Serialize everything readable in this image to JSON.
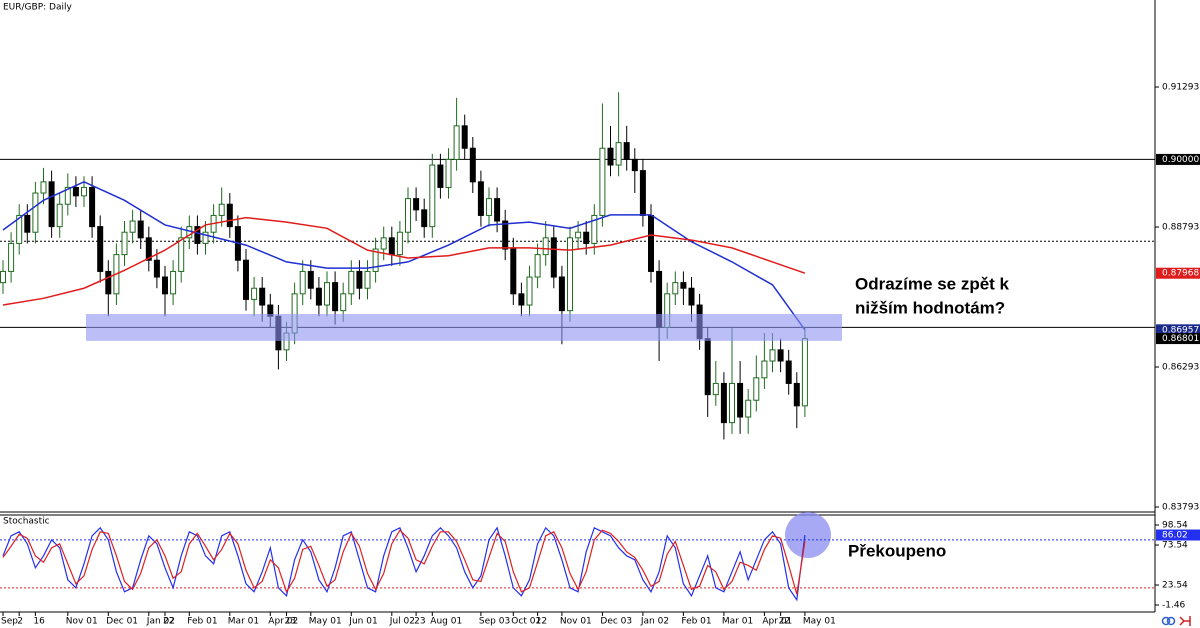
{
  "chart_data": [
    {
      "type": "candlestick",
      "title": "EUR/GBP: Daily",
      "open": [
        0.878,
        0.88,
        0.885,
        0.89,
        0.887,
        0.894,
        0.896,
        0.888,
        0.892,
        0.895,
        0.8935,
        0.895,
        0.888,
        0.88,
        0.876,
        0.883,
        0.887,
        0.889,
        0.886,
        0.882,
        0.879,
        0.876,
        0.88,
        0.886,
        0.888,
        0.885,
        0.887,
        0.89,
        0.892,
        0.888,
        0.882,
        0.875,
        0.877,
        0.874,
        0.872,
        0.866,
        0.869,
        0.876,
        0.88,
        0.877,
        0.874,
        0.878,
        0.873,
        0.876,
        0.88,
        0.877,
        0.88,
        0.884,
        0.886,
        0.883,
        0.887,
        0.893,
        0.891,
        0.888,
        0.899,
        0.895,
        0.9,
        0.906,
        0.902,
        0.896,
        0.89,
        0.893,
        0.889,
        0.884,
        0.876,
        0.874,
        0.879,
        0.883,
        0.886,
        0.879,
        0.873,
        0.886,
        0.887,
        0.885,
        0.89,
        0.902,
        0.899,
        0.903,
        0.9,
        0.898,
        0.89,
        0.88,
        0.87,
        0.876,
        0.878,
        0.877,
        0.874,
        0.868,
        0.858,
        0.86,
        0.853,
        0.86,
        0.854,
        0.857,
        0.861,
        0.864,
        0.866,
        0.864,
        0.86,
        0.856
      ],
      "high": [
        0.882,
        0.887,
        0.892,
        0.892,
        0.896,
        0.8985,
        0.898,
        0.894,
        0.8975,
        0.897,
        0.897,
        0.897,
        0.89,
        0.882,
        0.885,
        0.889,
        0.891,
        0.891,
        0.888,
        0.884,
        0.881,
        0.882,
        0.888,
        0.89,
        0.89,
        0.889,
        0.892,
        0.895,
        0.894,
        0.89,
        0.884,
        0.879,
        0.879,
        0.876,
        0.874,
        0.871,
        0.878,
        0.882,
        0.882,
        0.879,
        0.88,
        0.88,
        0.878,
        0.882,
        0.882,
        0.882,
        0.886,
        0.888,
        0.888,
        0.889,
        0.895,
        0.895,
        0.893,
        0.901,
        0.901,
        0.902,
        0.911,
        0.908,
        0.904,
        0.898,
        0.895,
        0.895,
        0.891,
        0.886,
        0.878,
        0.881,
        0.885,
        0.889,
        0.888,
        0.881,
        0.888,
        0.889,
        0.889,
        0.892,
        0.91,
        0.906,
        0.912,
        0.906,
        0.902,
        0.9,
        0.892,
        0.882,
        0.878,
        0.88,
        0.88,
        0.879,
        0.876,
        0.87,
        0.864,
        0.862,
        0.87,
        0.864,
        0.859,
        0.865,
        0.869,
        0.869,
        0.868,
        0.866,
        0.862,
        0.87
      ],
      "low": [
        0.876,
        0.878,
        0.883,
        0.885,
        0.885,
        0.892,
        0.886,
        0.886,
        0.89,
        0.8915,
        0.8915,
        0.886,
        0.878,
        0.872,
        0.874,
        0.881,
        0.885,
        0.884,
        0.88,
        0.877,
        0.872,
        0.874,
        0.878,
        0.884,
        0.883,
        0.883,
        0.885,
        0.888,
        0.886,
        0.88,
        0.873,
        0.872,
        0.871,
        0.87,
        0.8625,
        0.864,
        0.867,
        0.874,
        0.875,
        0.872,
        0.872,
        0.8705,
        0.871,
        0.874,
        0.875,
        0.875,
        0.878,
        0.882,
        0.881,
        0.881,
        0.885,
        0.889,
        0.886,
        0.886,
        0.893,
        0.893,
        0.898,
        0.9,
        0.894,
        0.888,
        0.888,
        0.887,
        0.882,
        0.874,
        0.872,
        0.872,
        0.877,
        0.881,
        0.877,
        0.867,
        0.871,
        0.884,
        0.883,
        0.883,
        0.888,
        0.897,
        0.897,
        0.898,
        0.894,
        0.888,
        0.878,
        0.864,
        0.868,
        0.874,
        0.874,
        0.871,
        0.866,
        0.854,
        0.856,
        0.85,
        0.851,
        0.851,
        0.851,
        0.855,
        0.859,
        0.862,
        0.862,
        0.858,
        0.852,
        0.854
      ],
      "close": [
        0.88,
        0.885,
        0.89,
        0.887,
        0.894,
        0.896,
        0.888,
        0.892,
        0.895,
        0.8935,
        0.895,
        0.888,
        0.88,
        0.876,
        0.883,
        0.887,
        0.889,
        0.886,
        0.882,
        0.879,
        0.876,
        0.88,
        0.886,
        0.888,
        0.885,
        0.887,
        0.89,
        0.892,
        0.888,
        0.882,
        0.875,
        0.877,
        0.874,
        0.872,
        0.866,
        0.869,
        0.876,
        0.88,
        0.877,
        0.874,
        0.878,
        0.873,
        0.876,
        0.88,
        0.877,
        0.88,
        0.884,
        0.886,
        0.883,
        0.887,
        0.893,
        0.891,
        0.888,
        0.899,
        0.895,
        0.9,
        0.906,
        0.902,
        0.896,
        0.89,
        0.893,
        0.889,
        0.884,
        0.876,
        0.874,
        0.879,
        0.883,
        0.886,
        0.879,
        0.873,
        0.886,
        0.887,
        0.885,
        0.89,
        0.902,
        0.899,
        0.903,
        0.9,
        0.898,
        0.89,
        0.88,
        0.87,
        0.876,
        0.878,
        0.877,
        0.874,
        0.868,
        0.858,
        0.86,
        0.853,
        0.86,
        0.854,
        0.857,
        0.861,
        0.864,
        0.866,
        0.864,
        0.86,
        0.856,
        0.86801
      ],
      "up_color": "#1f6b1f",
      "down_color": "#000000",
      "ylim": [
        0.83704,
        0.92847
      ],
      "yticks": [
        0.91293,
        0.88793,
        0.86293,
        0.83793
      ],
      "overlays": [
        {
          "color": "#1f2fd0",
          "x": [
            0,
            5,
            10,
            15,
            20,
            25,
            30,
            35,
            40,
            45,
            50,
            55,
            60,
            65,
            70,
            75,
            80,
            85,
            90,
            95,
            99
          ],
          "values": [
            0.8874,
            0.8927,
            0.896,
            0.8927,
            0.8883,
            0.8865,
            0.8847,
            0.8817,
            0.8806,
            0.8806,
            0.8817,
            0.8847,
            0.8883,
            0.8888,
            0.8877,
            0.8901,
            0.8901,
            0.8853,
            0.8817,
            0.8776,
            0.86957
          ]
        },
        {
          "color": "#e01b1b",
          "x": [
            0,
            5,
            10,
            15,
            20,
            25,
            30,
            35,
            40,
            45,
            50,
            55,
            60,
            65,
            70,
            75,
            80,
            85,
            90,
            95,
            99
          ],
          "values": [
            0.874,
            0.8752,
            0.877,
            0.8802,
            0.8838,
            0.8883,
            0.8896,
            0.8888,
            0.8877,
            0.8838,
            0.8824,
            0.8828,
            0.8842,
            0.8842,
            0.8838,
            0.8847,
            0.8865,
            0.8856,
            0.8842,
            0.8817,
            0.87968
          ]
        }
      ],
      "levels": [
        {
          "value": 0.9,
          "style": "solid"
        },
        {
          "value": 0.8854,
          "style": "dotted"
        },
        {
          "value": 0.87,
          "style": "solid"
        }
      ],
      "zone": [
        0.8676,
        0.8724
      ],
      "zone_color": "#8f92f2",
      "price_labels": [
        {
          "value": 0.9,
          "label": "0.90000",
          "color": "#000000"
        },
        {
          "value": 0.87968,
          "label": "0.87968",
          "color": "#e01b1b"
        },
        {
          "value": 0.86957,
          "label": "0.86957",
          "color": "#1a2a8a"
        },
        {
          "value": 0.86801,
          "label": "0.86801",
          "color": "#000000"
        }
      ],
      "annotations": [
        "Odrazíme se zpět k",
        "nižším hodnotám?"
      ]
    },
    {
      "type": "line",
      "title": "Stochastic",
      "categories": [
        "Sep",
        null,
        "2",
        null,
        "16",
        null,
        null,
        null,
        "Nov 01",
        null,
        null,
        null,
        null,
        "Dec 01",
        null,
        null,
        null,
        null,
        "Jan 02",
        null,
        "22",
        null,
        null,
        "Feb 01",
        null,
        null,
        null,
        null,
        "Mar 01",
        null,
        null,
        null,
        null,
        "Apr 02",
        null,
        "23",
        null,
        null,
        "May 01",
        null,
        null,
        null,
        null,
        "Jun 01",
        null,
        null,
        null,
        null,
        "Jul 02",
        null,
        null,
        "23",
        null,
        "Aug 01",
        null,
        null,
        null,
        null,
        null,
        "Sep 03",
        null,
        null,
        null,
        "Oct 01",
        null,
        null,
        "22",
        null,
        null,
        "Nov 01",
        null,
        null,
        null,
        null,
        "Dec 03",
        null,
        null,
        null,
        null,
        "Jan 02",
        null,
        null,
        null,
        null,
        "Feb 01",
        null,
        null,
        null,
        null,
        "Mar 01",
        null,
        null,
        null,
        null,
        "Apr 01",
        null,
        "22",
        null,
        null,
        "May 01"
      ],
      "series": [
        {
          "color": "#2430f0",
          "values": [
            60,
            85,
            90,
            75,
            45,
            60,
            80,
            70,
            30,
            20,
            50,
            85,
            95,
            80,
            40,
            15,
            20,
            55,
            85,
            75,
            45,
            20,
            60,
            90,
            85,
            60,
            50,
            85,
            90,
            60,
            25,
            15,
            40,
            70,
            20,
            10,
            55,
            80,
            65,
            30,
            15,
            45,
            85,
            90,
            55,
            20,
            15,
            60,
            90,
            95,
            70,
            40,
            60,
            85,
            95,
            85,
            70,
            40,
            20,
            35,
            80,
            95,
            60,
            20,
            10,
            30,
            75,
            95,
            85,
            55,
            20,
            15,
            65,
            95,
            90,
            85,
            70,
            60,
            55,
            30,
            15,
            40,
            85,
            70,
            25,
            10,
            35,
            60,
            20,
            15,
            40,
            65,
            30,
            55,
            80,
            90,
            75,
            20,
            5,
            86.02
          ]
        },
        {
          "color": "#e02020",
          "values": [
            58,
            72,
            87,
            82,
            60,
            52,
            70,
            75,
            50,
            25,
            35,
            68,
            90,
            88,
            60,
            28,
            18,
            38,
            70,
            80,
            60,
            32,
            40,
            75,
            88,
            72,
            55,
            68,
            88,
            75,
            42,
            20,
            28,
            55,
            45,
            15,
            32,
            68,
            72,
            48,
            22,
            30,
            65,
            88,
            72,
            38,
            18,
            38,
            75,
            92,
            82,
            55,
            50,
            72,
            90,
            90,
            78,
            55,
            30,
            28,
            58,
            88,
            78,
            40,
            15,
            20,
            52,
            85,
            90,
            70,
            38,
            18,
            40,
            80,
            92,
            88,
            78,
            65,
            58,
            42,
            22,
            28,
            62,
            78,
            48,
            18,
            22,
            48,
            40,
            18,
            28,
            52,
            48,
            42,
            68,
            85,
            82,
            48,
            12,
            78
          ]
        }
      ],
      "ylim": [
        -10.21,
        111.04
      ],
      "yticks": [
        98.54,
        73.54,
        23.54,
        -1.46
      ],
      "levels": [
        {
          "value": 80,
          "color": "#2430f0"
        },
        {
          "value": 20,
          "color": "#e02020"
        }
      ],
      "current_label": 86.02,
      "current_color": "#2430f0",
      "annotations": [
        "Překoupeno"
      ]
    }
  ]
}
